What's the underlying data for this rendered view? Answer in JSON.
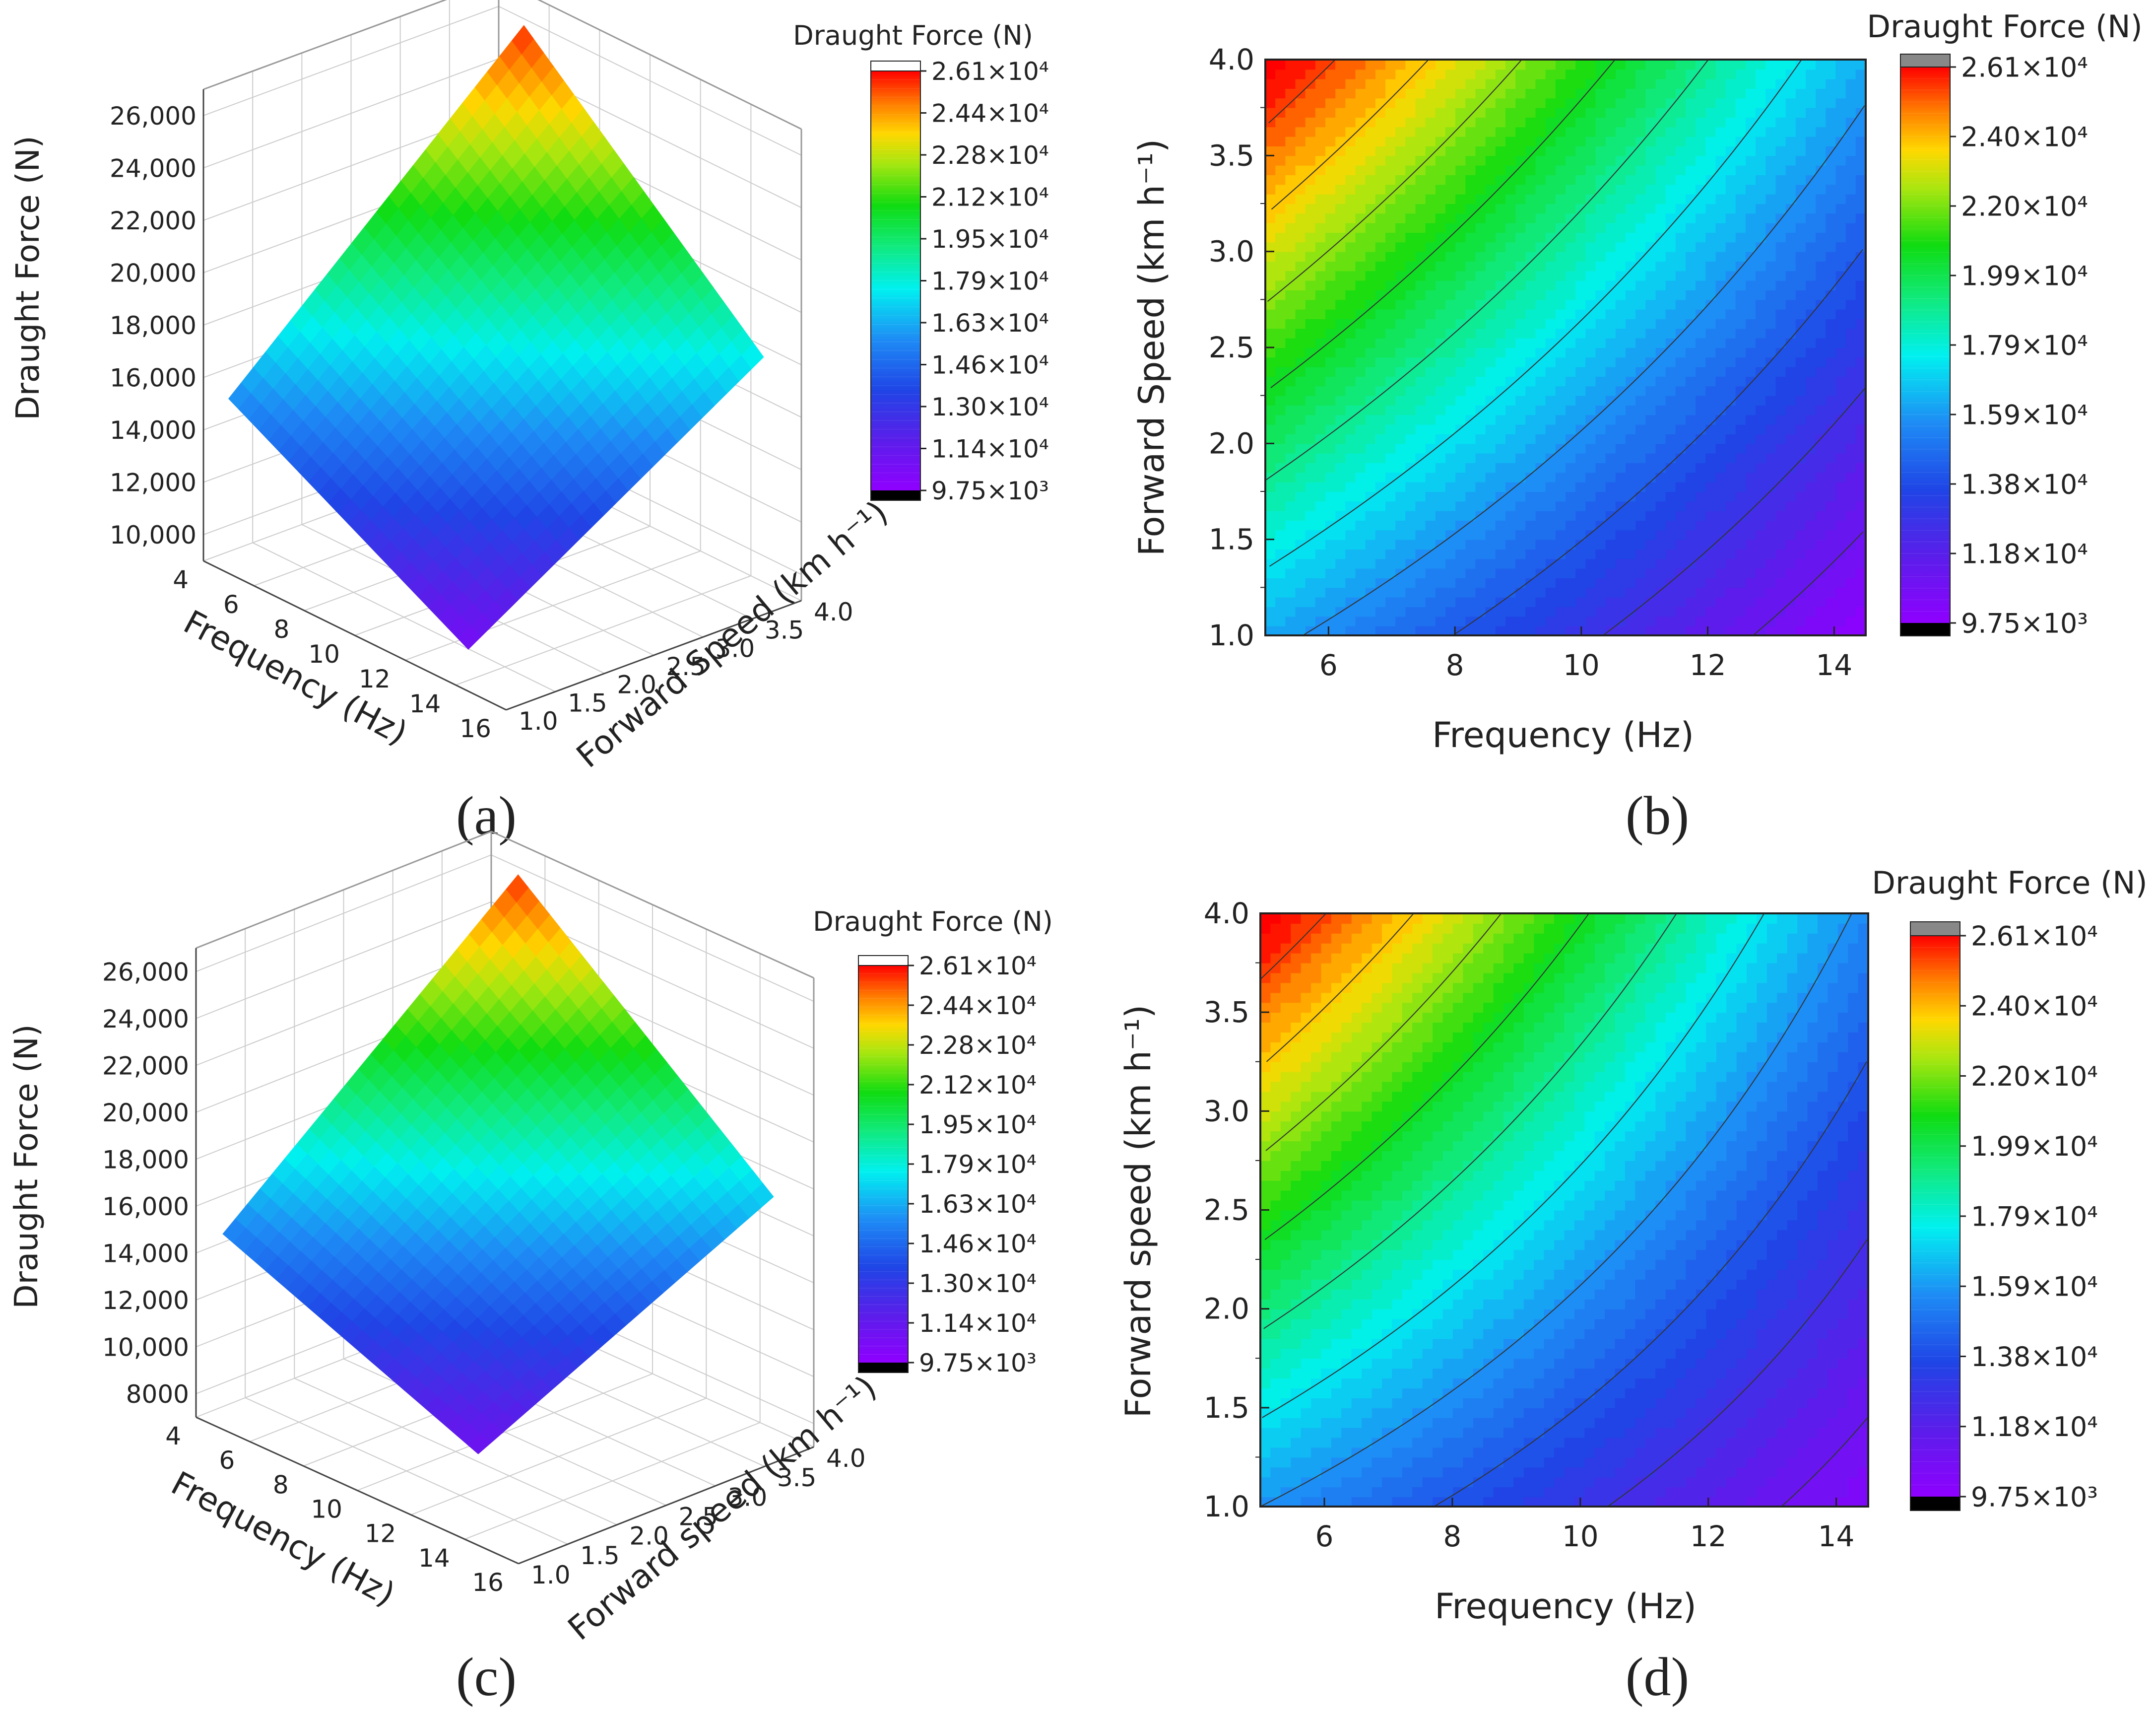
{
  "figure": {
    "panel_letters": [
      "(a)",
      "(b)",
      "(c)",
      "(d)"
    ]
  },
  "chart_data": [
    {
      "panel": "(a)",
      "type": "surface3d",
      "title": "",
      "xlabel": "Frequency (Hz)",
      "ylabel": "Forward Speed (km h⁻¹)",
      "zlabel": "Draught Force (N)",
      "xlim": [
        4,
        16
      ],
      "ylim": [
        1.0,
        4.0
      ],
      "zlim": [
        9000,
        27000
      ],
      "x_ticks": [
        "4",
        "6",
        "8",
        "10",
        "12",
        "14",
        "16"
      ],
      "y_ticks": [
        "1.0",
        "1.5",
        "2.0",
        "2.5",
        "3.0",
        "3.5",
        "4.0"
      ],
      "z_ticks": [
        "10,000",
        "12,000",
        "14,000",
        "16,000",
        "18,000",
        "20,000",
        "22,000",
        "24,000",
        "26,000"
      ],
      "x": [
        5,
        14.5
      ],
      "y": [
        1.0,
        4.0
      ],
      "z_corners": {
        "f5_v1": 16200,
        "f5_v4": 26600,
        "f14.5_v1": 9800,
        "f14.5_v4": 16300
      },
      "colorbar": {
        "title": "Draught Force (N)",
        "ticks": [
          "2.61×10⁴",
          "2.44×10⁴",
          "2.28×10⁴",
          "2.12×10⁴",
          "1.95×10⁴",
          "1.79×10⁴",
          "1.63×10⁴",
          "1.46×10⁴",
          "1.30×10⁴",
          "1.14×10⁴",
          "9.75×10³"
        ],
        "range": [
          9750,
          26100
        ]
      }
    },
    {
      "panel": "(b)",
      "type": "heatmap",
      "title": "",
      "xlabel": "Frequency (Hz)",
      "ylabel": "Forward Speed (km h⁻¹)",
      "xlim": [
        5,
        14.5
      ],
      "ylim": [
        1.0,
        4.0
      ],
      "x_ticks": [
        "6",
        "8",
        "10",
        "12",
        "14"
      ],
      "y_ticks": [
        "1.0",
        "1.5",
        "2.0",
        "2.5",
        "3.0",
        "3.5",
        "4.0"
      ],
      "z_corners": {
        "f5_v1": 16200,
        "f5_v4": 26600,
        "f14.5_v1": 9800,
        "f14.5_v4": 16300
      },
      "colorbar": {
        "title": "Draught Force (N)",
        "ticks": [
          "2.61×10⁴",
          "2.40×10⁴",
          "2.20×10⁴",
          "1.99×10⁴",
          "1.79×10⁴",
          "1.59×10⁴",
          "1.38×10⁴",
          "1.18×10⁴",
          "9.75×10³"
        ],
        "range": [
          9750,
          26100
        ]
      }
    },
    {
      "panel": "(c)",
      "type": "surface3d",
      "title": "",
      "xlabel": "Frequency (Hz)",
      "ylabel": "Forward speed (km h⁻¹)",
      "zlabel": "Draught Force (N)",
      "xlim": [
        4,
        16
      ],
      "ylim": [
        1.0,
        4.0
      ],
      "zlim": [
        7000,
        27000
      ],
      "x_ticks": [
        "4",
        "6",
        "8",
        "10",
        "12",
        "14",
        "16"
      ],
      "y_ticks": [
        "1.0",
        "1.5",
        "2.0",
        "2.5",
        "3.0",
        "3.5",
        "4.0"
      ],
      "z_ticks": [
        "8000",
        "10,000",
        "12,000",
        "14,000",
        "16,000",
        "18,000",
        "20,000",
        "22,000",
        "24,000",
        "26,000"
      ],
      "x": [
        5,
        14.5
      ],
      "y": [
        1.0,
        4.0
      ],
      "z_corners": {
        "f5_v1": 15800,
        "f5_v4": 26600,
        "f14.5_v1": 10200,
        "f14.5_v4": 15500
      },
      "colorbar": {
        "title": "Draught Force (N)",
        "ticks": [
          "2.61×10⁴",
          "2.44×10⁴",
          "2.28×10⁴",
          "2.12×10⁴",
          "1.95×10⁴",
          "1.79×10⁴",
          "1.63×10⁴",
          "1.46×10⁴",
          "1.30×10⁴",
          "1.14×10⁴",
          "9.75×10³"
        ],
        "range": [
          9750,
          26100
        ]
      }
    },
    {
      "panel": "(d)",
      "type": "heatmap",
      "title": "",
      "xlabel": "Frequency (Hz)",
      "ylabel": "Forward speed (km h⁻¹)",
      "xlim": [
        5,
        14.5
      ],
      "ylim": [
        1.0,
        4.0
      ],
      "x_ticks": [
        "6",
        "8",
        "10",
        "12",
        "14"
      ],
      "y_ticks": [
        "1.0",
        "1.5",
        "2.0",
        "2.5",
        "3.0",
        "3.5",
        "4.0"
      ],
      "z_corners": {
        "f5_v1": 15800,
        "f5_v4": 26600,
        "f14.5_v1": 10200,
        "f14.5_v4": 15500
      },
      "colorbar": {
        "title": "Draught Force (N)",
        "ticks": [
          "2.61×10⁴",
          "2.40×10⁴",
          "2.20×10⁴",
          "1.99×10⁴",
          "1.79×10⁴",
          "1.59×10⁴",
          "1.38×10⁴",
          "1.18×10⁴",
          "9.75×10³"
        ],
        "range": [
          9750,
          26100
        ]
      }
    }
  ]
}
